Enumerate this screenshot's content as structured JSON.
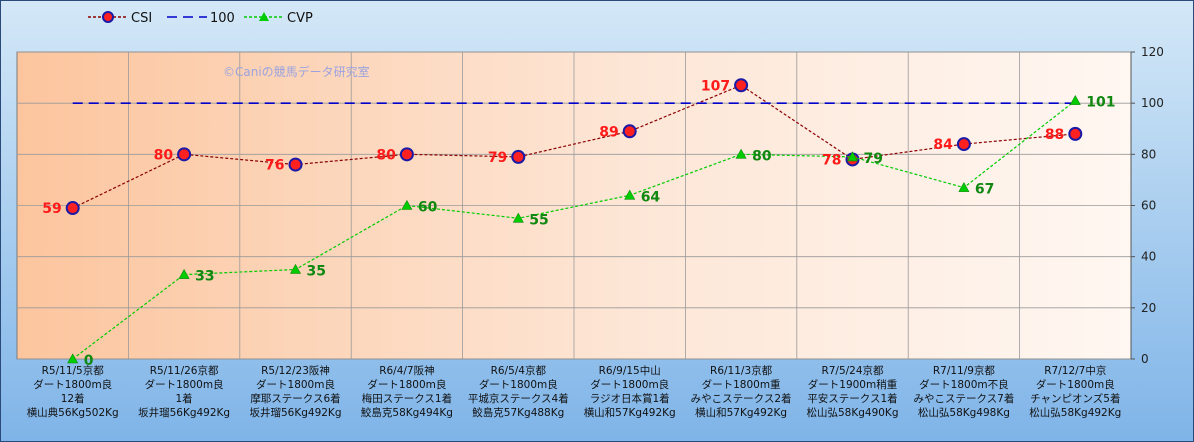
{
  "chart_data": {
    "type": "line",
    "watermark": "©Caniの競馬データ研究室",
    "yaxis": {
      "min": 0,
      "max": 120,
      "ticks": [
        0,
        20,
        40,
        60,
        80,
        100,
        120
      ],
      "position": "right"
    },
    "grid": true,
    "legend_position": "top-left",
    "categories": [
      [
        "R5/11/5京都",
        "ダート1800m良",
        "12着",
        "横山典56Kg502Kg"
      ],
      [
        "R5/11/26京都",
        "ダート1800m良",
        "1着",
        "坂井瑠56Kg492Kg"
      ],
      [
        "R5/12/23阪神",
        "ダート1800m良",
        "摩耶ステークス6着",
        "坂井瑠56Kg492Kg"
      ],
      [
        "R6/4/7阪神",
        "ダート1800m良",
        "梅田ステークス1着",
        "鮫島克58Kg494Kg"
      ],
      [
        "R6/5/4京都",
        "ダート1800m良",
        "平城京ステークス4着",
        "鮫島克57Kg488Kg"
      ],
      [
        "R6/9/15中山",
        "ダート1800m良",
        "ラジオ日本賞1着",
        "横山和57Kg492Kg"
      ],
      [
        "R6/11/3京都",
        "ダート1800m重",
        "みやこステークス2着",
        "横山和57Kg492Kg"
      ],
      [
        "R7/5/24京都",
        "ダート1900m稍重",
        "平安ステークス1着",
        "松山弘58Kg490Kg"
      ],
      [
        "R7/11/9京都",
        "ダート1800m不良",
        "みやこステークス7着",
        "松山弘58Kg498Kg"
      ],
      [
        "R7/12/7中京",
        "ダート1800m良",
        "チャンピオンズ5着",
        "松山弘58Kg492Kg"
      ]
    ],
    "series": [
      {
        "name": "CSI",
        "values": [
          59,
          80,
          76,
          80,
          79,
          89,
          107,
          78,
          84,
          88
        ],
        "color": "#8B0000",
        "label_color": "#ff1a1a",
        "marker": "circle",
        "marker_fill": "#ff2020",
        "marker_edge": "#1a1aa6",
        "dash": "dotted",
        "show_labels": true
      },
      {
        "name": "100",
        "values": [
          100,
          100,
          100,
          100,
          100,
          100,
          100,
          100,
          100,
          100
        ],
        "color": "#0000cc",
        "marker": "none",
        "dash": "dashed",
        "show_labels": false
      },
      {
        "name": "CVP",
        "values": [
          0,
          33,
          35,
          60,
          55,
          64,
          80,
          79,
          67,
          101
        ],
        "color": "#00cc00",
        "label_color": "#118811",
        "marker": "triangle",
        "marker_fill": "#00cc00",
        "dash": "dotted",
        "show_labels": true
      }
    ]
  }
}
